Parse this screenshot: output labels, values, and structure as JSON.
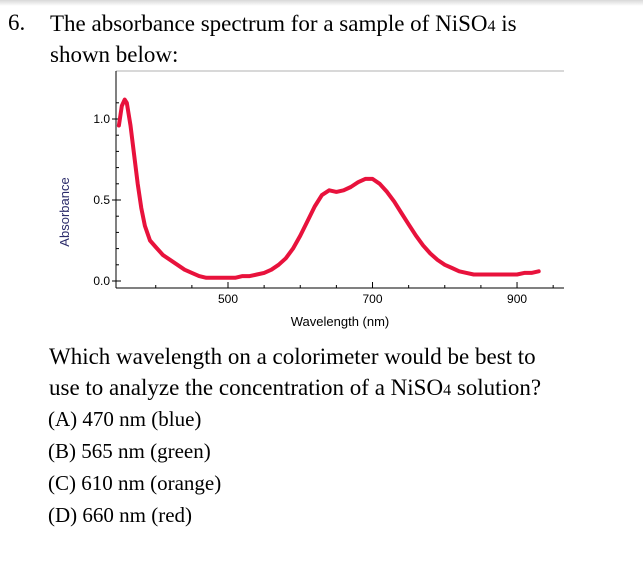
{
  "question": {
    "number": "6.",
    "stem_line1_before": "The absorbance spectrum for a sample of NiSO",
    "stem_sub": "4",
    "stem_line1_after": " is",
    "stem_line2": "shown below:",
    "prompt_line1": "Which wavelength on a colorimeter would be best to",
    "prompt_line2_before": "use to analyze the concentration of a NiSO",
    "prompt_sub": "4",
    "prompt_line2_after": " solution?"
  },
  "options": [
    {
      "label": "(A)",
      "text": "470 nm (blue)"
    },
    {
      "label": "(B)",
      "text": "565 nm (green)"
    },
    {
      "label": "(C)",
      "text": "610 nm (orange)"
    },
    {
      "label": "(D)",
      "text": "660 nm (red)"
    }
  ],
  "chart_data": {
    "type": "line",
    "title": "",
    "xlabel": "Wavelength (nm)",
    "ylabel": "Absorbance",
    "xlim": [
      345,
      965
    ],
    "ylim": [
      0,
      1.2
    ],
    "xticks": [
      {
        "value": 500,
        "label": "500"
      },
      {
        "value": 700,
        "label": "700"
      },
      {
        "value": 900,
        "label": "900"
      }
    ],
    "yticks": [
      {
        "value": 0.0,
        "label": "0.0"
      },
      {
        "value": 0.5,
        "label": "0.5"
      },
      {
        "value": 1.0,
        "label": "1.0"
      }
    ],
    "grid": false,
    "series": [
      {
        "color": "#e8123c",
        "x": [
          349,
          353,
          357,
          360,
          365,
          370,
          375,
          380,
          385,
          392,
          400,
          410,
          420,
          430,
          440,
          450,
          460,
          470,
          480,
          490,
          500,
          510,
          520,
          530,
          540,
          550,
          560,
          570,
          580,
          590,
          600,
          610,
          620,
          630,
          640,
          650,
          660,
          670,
          680,
          690,
          700,
          710,
          720,
          730,
          740,
          750,
          760,
          770,
          780,
          790,
          800,
          810,
          820,
          830,
          840,
          850,
          860,
          870,
          880,
          890,
          900,
          910,
          920,
          930
        ],
        "y": [
          0.96,
          1.08,
          1.12,
          1.1,
          0.96,
          0.78,
          0.6,
          0.45,
          0.34,
          0.25,
          0.21,
          0.16,
          0.13,
          0.1,
          0.07,
          0.05,
          0.03,
          0.02,
          0.02,
          0.02,
          0.02,
          0.02,
          0.03,
          0.03,
          0.04,
          0.05,
          0.07,
          0.1,
          0.14,
          0.2,
          0.28,
          0.37,
          0.46,
          0.53,
          0.56,
          0.55,
          0.56,
          0.58,
          0.61,
          0.63,
          0.63,
          0.6,
          0.55,
          0.49,
          0.42,
          0.35,
          0.28,
          0.22,
          0.17,
          0.13,
          0.1,
          0.08,
          0.06,
          0.05,
          0.04,
          0.04,
          0.04,
          0.04,
          0.04,
          0.04,
          0.04,
          0.05,
          0.05,
          0.06
        ]
      }
    ]
  }
}
